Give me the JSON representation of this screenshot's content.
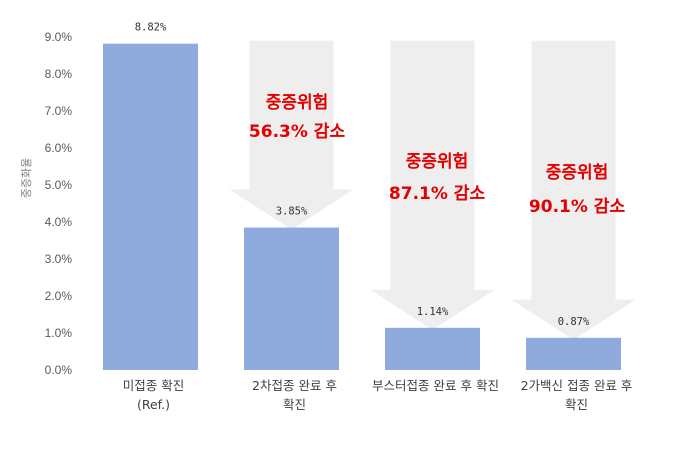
{
  "chart_data": {
    "type": "bar",
    "ylabel": "중증화율",
    "ylim": [
      0,
      9
    ],
    "y_ticks": [
      "0.0%",
      "1.0%",
      "2.0%",
      "3.0%",
      "4.0%",
      "5.0%",
      "6.0%",
      "7.0%",
      "8.0%",
      "9.0%"
    ],
    "categories": [
      [
        "미접종 확진",
        "(Ref.)"
      ],
      [
        "2차접종 완료 후",
        "확진"
      ],
      [
        "부스터접종 완료 후 확진"
      ],
      [
        "2가백신 접종 완료 후",
        "확진"
      ]
    ],
    "values": [
      8.82,
      3.85,
      1.14,
      0.87
    ],
    "data_labels": [
      "8.82%",
      "3.85%",
      "1.14%",
      "0.87%"
    ],
    "bar_color": "#8faadc",
    "arrow_color": "#eeeeee",
    "annotation_color": "#e30000",
    "annotations": [
      {
        "line1": "중증위험",
        "line2": "56.3% 감소"
      },
      {
        "line1": "중증위험",
        "line2": "87.1% 감소"
      },
      {
        "line1": "중증위험",
        "line2": "90.1% 감소"
      }
    ]
  }
}
